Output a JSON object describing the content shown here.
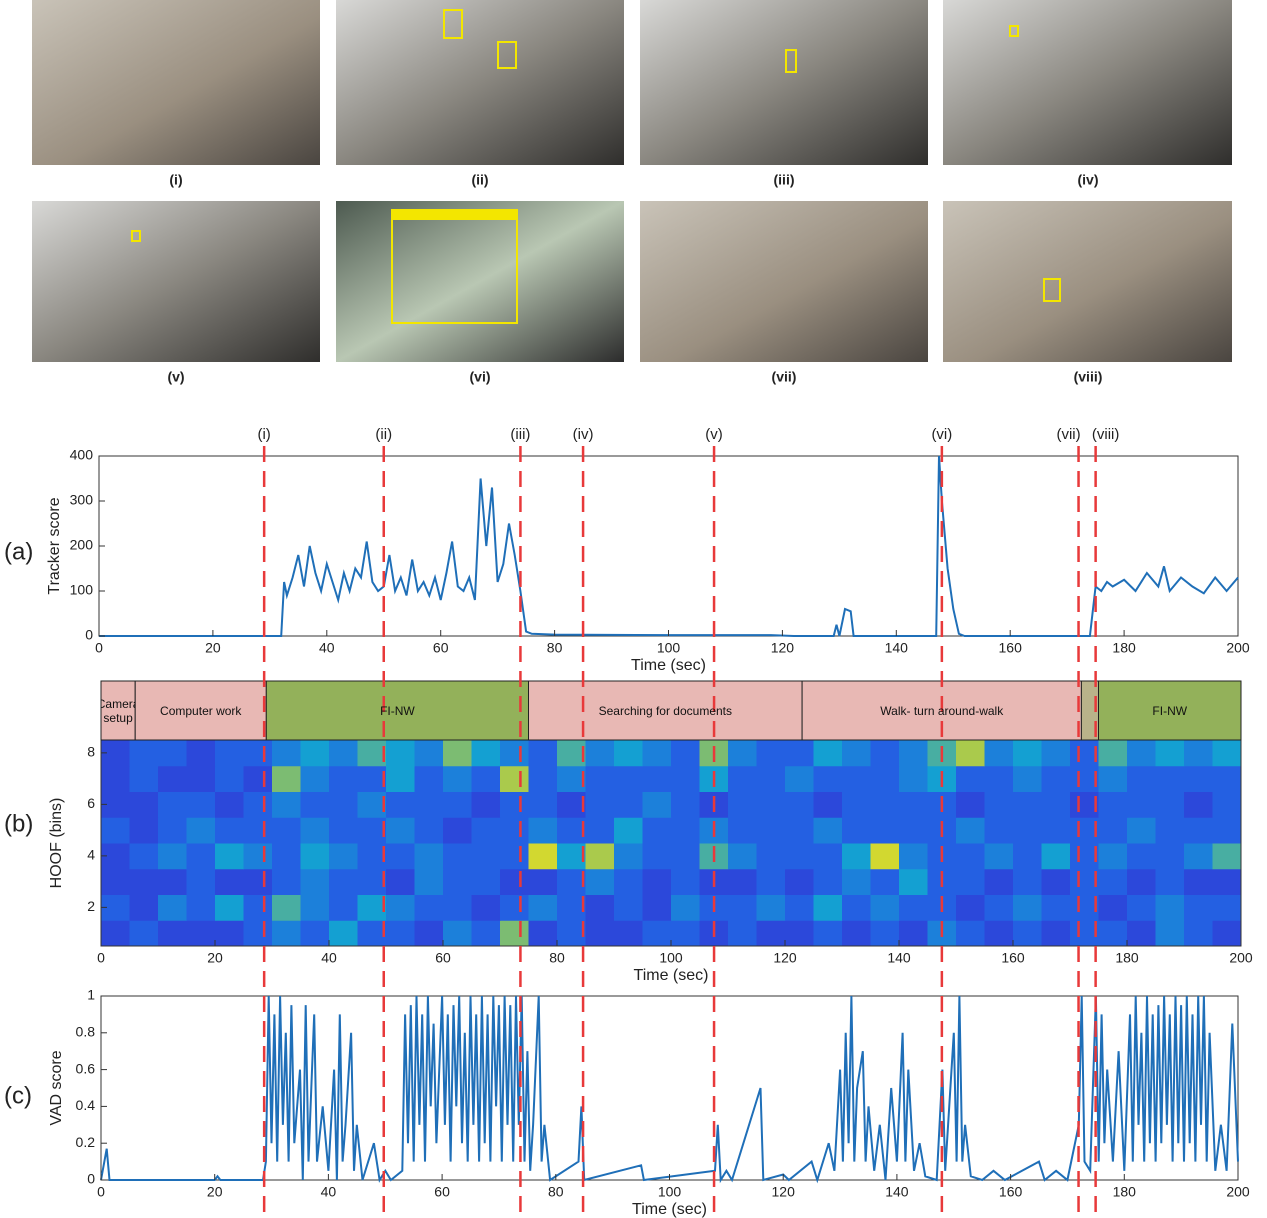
{
  "images": [
    {
      "caption": "(i)"
    },
    {
      "caption": "(ii)"
    },
    {
      "caption": "(iii)"
    },
    {
      "caption": "(iv)"
    },
    {
      "caption": "(v)"
    },
    {
      "caption": "(vi)"
    },
    {
      "caption": "(vii)"
    },
    {
      "caption": "(viii)"
    }
  ],
  "panel_labels": [
    "(a)",
    "(b)",
    "(c)"
  ],
  "events": {
    "labels": [
      "(i)",
      "(ii)",
      "(iii)",
      "(iv)",
      "(v)",
      "(vi)",
      "(vii)",
      "(viii)"
    ],
    "times": [
      29,
      50,
      74,
      85,
      108,
      148,
      172,
      175
    ],
    "color": "#e8393a"
  },
  "chart_data": [
    {
      "type": "line",
      "ylabel": "Tracker score",
      "xlabel": "Time (sec)",
      "color": "#1f6fb8",
      "xlim": [
        0,
        200
      ],
      "ylim": [
        0,
        400
      ],
      "xticks": [
        0,
        20,
        40,
        60,
        80,
        100,
        120,
        140,
        160,
        180,
        200
      ],
      "yticks": [
        0,
        100,
        200,
        300,
        400
      ],
      "x": [
        0,
        32,
        32.5,
        33,
        34,
        35,
        36,
        37,
        38,
        39,
        40,
        41,
        42,
        43,
        44,
        45,
        46,
        47,
        48,
        49,
        50,
        51,
        52,
        53,
        54,
        55,
        56,
        57,
        58,
        59,
        60,
        61,
        62,
        63,
        64,
        65,
        66,
        67,
        68,
        69,
        70,
        71,
        72,
        73,
        74,
        75,
        76,
        80,
        100,
        118,
        122,
        129,
        129.5,
        130,
        131,
        132,
        132.5,
        147,
        147.5,
        148,
        149,
        150,
        151,
        152,
        174,
        175,
        176,
        177,
        178,
        180,
        182,
        184,
        186,
        187,
        188,
        190,
        192,
        194,
        196,
        198,
        200
      ],
      "values": [
        0,
        0,
        120,
        90,
        130,
        180,
        110,
        200,
        140,
        100,
        160,
        120,
        80,
        140,
        100,
        150,
        130,
        210,
        120,
        100,
        110,
        180,
        100,
        130,
        90,
        170,
        100,
        120,
        90,
        130,
        80,
        140,
        210,
        110,
        100,
        130,
        80,
        350,
        200,
        330,
        120,
        160,
        250,
        180,
        100,
        10,
        5,
        3,
        2,
        2,
        0,
        0,
        25,
        0,
        60,
        55,
        0,
        0,
        400,
        300,
        150,
        60,
        5,
        0,
        0,
        110,
        100,
        120,
        110,
        125,
        100,
        140,
        110,
        155,
        100,
        130,
        110,
        95,
        130,
        100,
        130
      ]
    },
    {
      "type": "heatmap",
      "ylabel": "HOOF (bins)",
      "xlabel": "Time (sec)",
      "xlim": [
        0,
        200
      ],
      "ylim": [
        0.5,
        8.5
      ],
      "xticks": [
        0,
        20,
        40,
        60,
        80,
        100,
        120,
        140,
        160,
        180,
        200
      ],
      "yticks": [
        2,
        4,
        6,
        8
      ],
      "segments": [
        {
          "label": "Camera setup",
          "start": 0,
          "end": 6,
          "color": "#e8b8b4"
        },
        {
          "label": "Computer work",
          "start": 6,
          "end": 29,
          "color": "#e8b8b4"
        },
        {
          "label": "FI-NW",
          "start": 29,
          "end": 75,
          "color": "#93b15a"
        },
        {
          "label": "Searching for documents",
          "start": 75,
          "end": 123,
          "color": "#e8b8b4"
        },
        {
          "label": "Walk- turn around-walk",
          "start": 123,
          "end": 172,
          "color": "#e8b8b4"
        },
        {
          "start": 172,
          "end": 175,
          "color": "#b9b38a"
        },
        {
          "label": "FI-NW",
          "start": 175,
          "end": 200,
          "color": "#93b15a"
        }
      ],
      "values": [
        [
          0.2,
          0.3,
          0.2,
          0.2,
          0.2,
          0.3,
          0.4,
          0.3,
          0.5,
          0.3,
          0.3,
          0.2,
          0.4,
          0.3,
          0.7,
          0.2,
          0.3,
          0.2,
          0.2,
          0.3,
          0.3,
          0.2,
          0.3,
          0.2,
          0.2,
          0.3,
          0.2,
          0.3,
          0.2,
          0.4,
          0.3,
          0.2,
          0.3,
          0.2,
          0.3,
          0.3,
          0.2,
          0.4,
          0.3,
          0.2
        ],
        [
          0.3,
          0.2,
          0.4,
          0.3,
          0.5,
          0.3,
          0.6,
          0.4,
          0.3,
          0.5,
          0.4,
          0.3,
          0.3,
          0.2,
          0.3,
          0.4,
          0.3,
          0.2,
          0.3,
          0.2,
          0.4,
          0.3,
          0.3,
          0.4,
          0.3,
          0.5,
          0.3,
          0.4,
          0.3,
          0.3,
          0.2,
          0.3,
          0.4,
          0.3,
          0.3,
          0.2,
          0.3,
          0.4,
          0.3,
          0.3
        ],
        [
          0.2,
          0.2,
          0.2,
          0.3,
          0.2,
          0.2,
          0.3,
          0.4,
          0.3,
          0.3,
          0.2,
          0.4,
          0.3,
          0.3,
          0.2,
          0.2,
          0.3,
          0.4,
          0.3,
          0.2,
          0.3,
          0.2,
          0.2,
          0.3,
          0.2,
          0.3,
          0.4,
          0.3,
          0.5,
          0.3,
          0.3,
          0.2,
          0.3,
          0.2,
          0.3,
          0.3,
          0.2,
          0.3,
          0.2,
          0.2
        ],
        [
          0.2,
          0.3,
          0.4,
          0.3,
          0.5,
          0.4,
          0.3,
          0.5,
          0.4,
          0.3,
          0.3,
          0.4,
          0.3,
          0.3,
          0.3,
          0.9,
          0.5,
          0.8,
          0.4,
          0.3,
          0.3,
          0.6,
          0.4,
          0.3,
          0.3,
          0.3,
          0.5,
          0.9,
          0.4,
          0.3,
          0.3,
          0.4,
          0.3,
          0.5,
          0.3,
          0.4,
          0.3,
          0.3,
          0.4,
          0.6
        ],
        [
          0.3,
          0.2,
          0.3,
          0.4,
          0.3,
          0.3,
          0.3,
          0.4,
          0.3,
          0.3,
          0.4,
          0.3,
          0.2,
          0.3,
          0.3,
          0.4,
          0.3,
          0.3,
          0.5,
          0.3,
          0.3,
          0.4,
          0.3,
          0.3,
          0.3,
          0.4,
          0.3,
          0.3,
          0.3,
          0.3,
          0.4,
          0.3,
          0.3,
          0.3,
          0.3,
          0.3,
          0.4,
          0.3,
          0.3,
          0.3
        ],
        [
          0.2,
          0.2,
          0.3,
          0.3,
          0.2,
          0.3,
          0.4,
          0.3,
          0.3,
          0.4,
          0.3,
          0.3,
          0.3,
          0.2,
          0.3,
          0.3,
          0.2,
          0.3,
          0.3,
          0.4,
          0.3,
          0.2,
          0.3,
          0.3,
          0.3,
          0.2,
          0.3,
          0.3,
          0.3,
          0.3,
          0.2,
          0.3,
          0.3,
          0.3,
          0.2,
          0.3,
          0.3,
          0.3,
          0.2,
          0.3
        ],
        [
          0.2,
          0.3,
          0.2,
          0.2,
          0.3,
          0.2,
          0.7,
          0.4,
          0.3,
          0.3,
          0.5,
          0.3,
          0.4,
          0.3,
          0.8,
          0.3,
          0.4,
          0.3,
          0.3,
          0.3,
          0.3,
          0.5,
          0.3,
          0.3,
          0.4,
          0.3,
          0.3,
          0.3,
          0.4,
          0.5,
          0.3,
          0.3,
          0.4,
          0.3,
          0.3,
          0.4,
          0.3,
          0.3,
          0.3,
          0.3
        ],
        [
          0.2,
          0.3,
          0.3,
          0.2,
          0.3,
          0.3,
          0.4,
          0.5,
          0.4,
          0.6,
          0.5,
          0.4,
          0.7,
          0.5,
          0.4,
          0.3,
          0.6,
          0.4,
          0.5,
          0.4,
          0.3,
          0.7,
          0.4,
          0.3,
          0.3,
          0.5,
          0.4,
          0.3,
          0.4,
          0.6,
          0.8,
          0.4,
          0.5,
          0.4,
          0.3,
          0.6,
          0.4,
          0.5,
          0.4,
          0.5
        ]
      ]
    },
    {
      "type": "line",
      "ylabel": "VAD score",
      "xlabel": "Time (sec)",
      "color": "#1f6fb8",
      "xlim": [
        0,
        200
      ],
      "ylim": [
        0,
        1
      ],
      "xticks": [
        0,
        20,
        40,
        60,
        80,
        100,
        120,
        140,
        160,
        180,
        200
      ],
      "yticks": [
        0,
        0.2,
        0.4,
        0.6,
        0.8,
        1
      ],
      "x": [
        0,
        1,
        1.5,
        20,
        20.5,
        21,
        28.5,
        29,
        29.5,
        30,
        30.5,
        31,
        31.5,
        32,
        32.5,
        33,
        33.5,
        34,
        35,
        35.5,
        36,
        36.5,
        37,
        37.5,
        38,
        39,
        40,
        41,
        41.5,
        42,
        42.5,
        43,
        44,
        44.5,
        45,
        46,
        48,
        49,
        50,
        51,
        53,
        53.5,
        54,
        54.5,
        55,
        55.5,
        56,
        56.5,
        57,
        57.5,
        58,
        58.5,
        59,
        60,
        60.5,
        61,
        61.5,
        62,
        62.5,
        63,
        63.5,
        64,
        64.5,
        65,
        65.5,
        66,
        66.5,
        67,
        67.5,
        68,
        68.5,
        69,
        69.5,
        70,
        70.5,
        71,
        71.5,
        72,
        72.5,
        73,
        73.5,
        74,
        74.5,
        75,
        75.5,
        76,
        77,
        77.5,
        78,
        79,
        84,
        84.5,
        85,
        95,
        95.5,
        108,
        108.5,
        109,
        110,
        111,
        116,
        116.5,
        120,
        121,
        125,
        126,
        128,
        129,
        130,
        130.5,
        131,
        131.5,
        132,
        132.5,
        133,
        134,
        134.5,
        135,
        136,
        137,
        138,
        139,
        140,
        141,
        141.5,
        142,
        143,
        144,
        145,
        147,
        148,
        148.5,
        149,
        150,
        150.5,
        151,
        151.5,
        152,
        153,
        155,
        157,
        159,
        165,
        166,
        168,
        170,
        172,
        172.5,
        173,
        174,
        175,
        175.5,
        176,
        176.5,
        177,
        178,
        179,
        180,
        181,
        181.5,
        182,
        182.5,
        183,
        183.5,
        184,
        184.5,
        185,
        185.5,
        186,
        186.5,
        187,
        187.5,
        188,
        188.5,
        189,
        189.5,
        190,
        190.5,
        191,
        191.5,
        192,
        192.5,
        193,
        193.5,
        194,
        194.5,
        195,
        196,
        197,
        198,
        199,
        200
      ],
      "values": [
        0,
        0.17,
        0,
        0,
        0.02,
        0,
        0,
        0.1,
        1,
        0.2,
        0.9,
        0.1,
        1,
        0.3,
        0.8,
        0.1,
        0.95,
        0.2,
        0.6,
        0,
        0.95,
        0.1,
        0.5,
        0.9,
        0.1,
        0.4,
        0.05,
        0.6,
        0,
        0.9,
        0.1,
        0.3,
        0.8,
        0.05,
        0.3,
        0,
        0.2,
        0,
        0.05,
        0,
        0.05,
        0.9,
        0.2,
        0.95,
        0.1,
        1,
        0.3,
        0.9,
        0.1,
        1,
        0.4,
        0.85,
        0.2,
        1,
        0.3,
        0.9,
        0.1,
        0.95,
        0.4,
        1,
        0.2,
        0.8,
        0.1,
        1,
        0.3,
        0.9,
        0.1,
        1,
        0.2,
        0.9,
        0.1,
        1,
        0.4,
        0.95,
        0.1,
        1,
        0.3,
        0.95,
        0.1,
        1,
        0.3,
        1,
        0.1,
        0.7,
        0.05,
        0.3,
        1,
        0.1,
        0.3,
        0,
        0.1,
        0.4,
        0,
        0.08,
        0,
        0.05,
        0.3,
        0,
        0.05,
        0,
        0.5,
        0,
        0.03,
        0,
        0.1,
        0,
        0.2,
        0.05,
        0.6,
        0.1,
        0.8,
        0.2,
        1,
        0.1,
        0.5,
        0.7,
        0.1,
        0.4,
        0.05,
        0.3,
        0,
        0.5,
        0.1,
        0.8,
        0.1,
        0.6,
        0.05,
        0.2,
        0.02,
        0,
        0.6,
        0.05,
        0.3,
        0.8,
        0.1,
        1,
        0.1,
        0.3,
        0.02,
        0,
        0.05,
        0,
        0.1,
        0,
        0.05,
        0,
        0.3,
        1,
        0.1,
        0.05,
        1,
        0.1,
        0.9,
        0.2,
        0.6,
        0.1,
        0.7,
        0.05,
        0.9,
        0.1,
        1,
        0.3,
        0.8,
        0.1,
        1,
        0.2,
        0.9,
        0.1,
        0.95,
        0.2,
        1,
        0.3,
        0.9,
        0.1,
        1,
        0.2,
        0.95,
        0.1,
        1,
        0.2,
        0.9,
        0.1,
        1,
        0.3,
        1,
        0.1,
        0.8,
        0.05,
        0.3,
        0.05,
        0.85,
        0.1
      ]
    }
  ]
}
